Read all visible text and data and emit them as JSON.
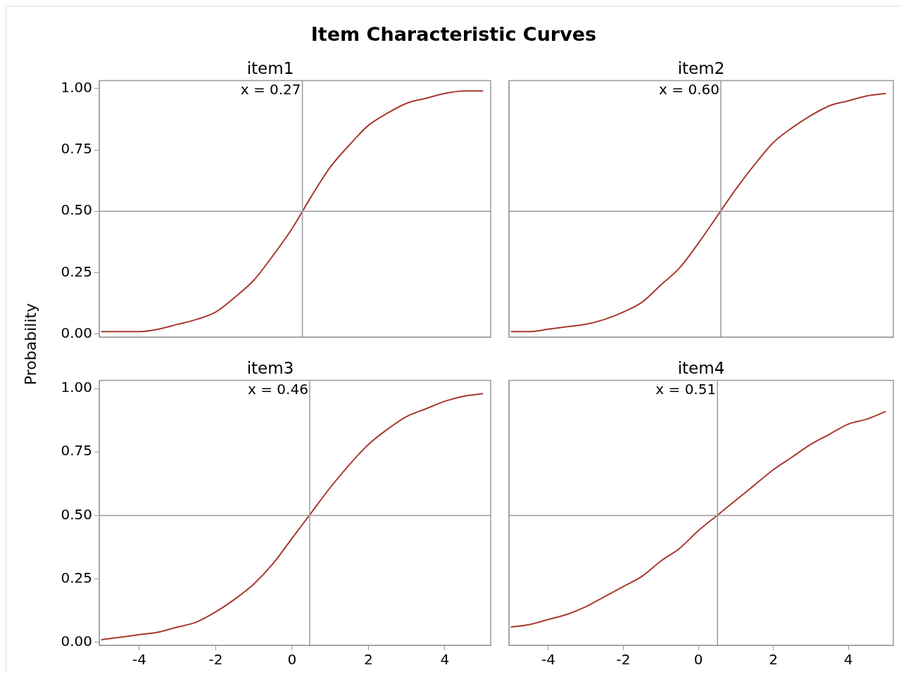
{
  "chart_data": [
    {
      "type": "line",
      "title": "item1",
      "ylabel": "Probability",
      "annotations": [
        "Item Characteristic Curves"
      ],
      "tick_labels": "y",
      "x": [
        -5,
        -4.5,
        -4,
        -3.5,
        -3,
        -2.5,
        -2,
        -1.5,
        -1,
        -0.5,
        0,
        0.5,
        1,
        1.5,
        2,
        2.5,
        3,
        3.5,
        4,
        4.5,
        5
      ],
      "series": [
        {
          "color": "#a83a2f",
          "values": [
            0.01,
            0.01,
            0.01,
            0.02,
            0.04,
            0.06,
            0.09,
            0.15,
            0.22,
            0.32,
            0.43,
            0.56,
            0.68,
            0.77,
            0.85,
            0.9,
            0.94,
            0.96,
            0.98,
            0.99,
            0.99
          ]
        }
      ],
      "xlim": [
        -5.05,
        5.2
      ],
      "ylim": [
        -0.012,
        1.032
      ],
      "yticks": [
        {
          "value": 0,
          "label": "0.00"
        },
        {
          "value": 0.25,
          "label": "0.25"
        },
        {
          "value": 0.5,
          "label": "0.50"
        },
        {
          "value": 0.75,
          "label": "0.75"
        },
        {
          "value": 1,
          "label": "1.00"
        }
      ],
      "ref_lines": [
        {
          "axis": "x",
          "value": 0.27,
          "label": "x = 0.27",
          "color": "#999999"
        },
        {
          "axis": "y",
          "value": 0.5,
          "color": "#999999"
        }
      ]
    },
    {
      "type": "line",
      "title": "item2",
      "tick_labels": false,
      "x": [
        -5,
        -4.5,
        -4,
        -3.5,
        -3,
        -2.5,
        -2,
        -1.5,
        -1,
        -0.5,
        0,
        0.5,
        1,
        1.5,
        2,
        2.5,
        3,
        3.5,
        4,
        4.5,
        5
      ],
      "series": [
        {
          "color": "#a83a2f",
          "values": [
            0.01,
            0.01,
            0.02,
            0.03,
            0.04,
            0.06,
            0.09,
            0.13,
            0.2,
            0.27,
            0.37,
            0.48,
            0.59,
            0.69,
            0.78,
            0.84,
            0.89,
            0.93,
            0.95,
            0.97,
            0.98
          ]
        }
      ],
      "xlim": [
        -5.05,
        5.2
      ],
      "ylim": [
        -0.012,
        1.032
      ],
      "ref_lines": [
        {
          "axis": "x",
          "value": 0.6,
          "label": "x = 0.60",
          "color": "#999999"
        },
        {
          "axis": "y",
          "value": 0.5,
          "color": "#999999"
        }
      ]
    },
    {
      "type": "line",
      "title": "item3",
      "x": [
        -5,
        -4.5,
        -4,
        -3.5,
        -3,
        -2.5,
        -2,
        -1.5,
        -1,
        -0.5,
        0,
        0.5,
        1,
        1.5,
        2,
        2.5,
        3,
        3.5,
        4,
        4.5,
        5
      ],
      "series": [
        {
          "color": "#a83a2f",
          "values": [
            0.01,
            0.02,
            0.03,
            0.04,
            0.06,
            0.08,
            0.12,
            0.17,
            0.23,
            0.31,
            0.41,
            0.51,
            0.61,
            0.7,
            0.78,
            0.84,
            0.89,
            0.92,
            0.95,
            0.97,
            0.98
          ]
        }
      ],
      "xlim": [
        -5.05,
        5.2
      ],
      "xticks": [
        -4,
        -2,
        0,
        2,
        4
      ],
      "ylim": [
        -0.012,
        1.032
      ],
      "yticks": [
        {
          "value": 0,
          "label": "0.00"
        },
        {
          "value": 0.25,
          "label": "0.25"
        },
        {
          "value": 0.5,
          "label": "0.50"
        },
        {
          "value": 0.75,
          "label": "0.75"
        },
        {
          "value": 1,
          "label": "1.00"
        }
      ],
      "ref_lines": [
        {
          "axis": "x",
          "value": 0.46,
          "label": "x = 0.46",
          "color": "#999999"
        },
        {
          "axis": "y",
          "value": 0.5,
          "color": "#999999"
        }
      ]
    },
    {
      "type": "line",
      "title": "item4",
      "tick_labels": "x",
      "x": [
        -5,
        -4.5,
        -4,
        -3.5,
        -3,
        -2.5,
        -2,
        -1.5,
        -1,
        -0.5,
        0,
        0.5,
        1,
        1.5,
        2,
        2.5,
        3,
        3.5,
        4,
        4.5,
        5
      ],
      "series": [
        {
          "color": "#a83a2f",
          "values": [
            0.06,
            0.07,
            0.09,
            0.11,
            0.14,
            0.18,
            0.22,
            0.26,
            0.32,
            0.37,
            0.44,
            0.5,
            0.56,
            0.62,
            0.68,
            0.73,
            0.78,
            0.82,
            0.86,
            0.88,
            0.91
          ]
        }
      ],
      "xlim": [
        -5.05,
        5.2
      ],
      "xticks": [
        -4,
        -2,
        0,
        2,
        4
      ],
      "ylim": [
        -0.012,
        1.032
      ],
      "ref_lines": [
        {
          "axis": "x",
          "value": 0.51,
          "label": "x = 0.51",
          "color": "#999999"
        },
        {
          "axis": "y",
          "value": 0.5,
          "color": "#999999"
        }
      ]
    }
  ]
}
